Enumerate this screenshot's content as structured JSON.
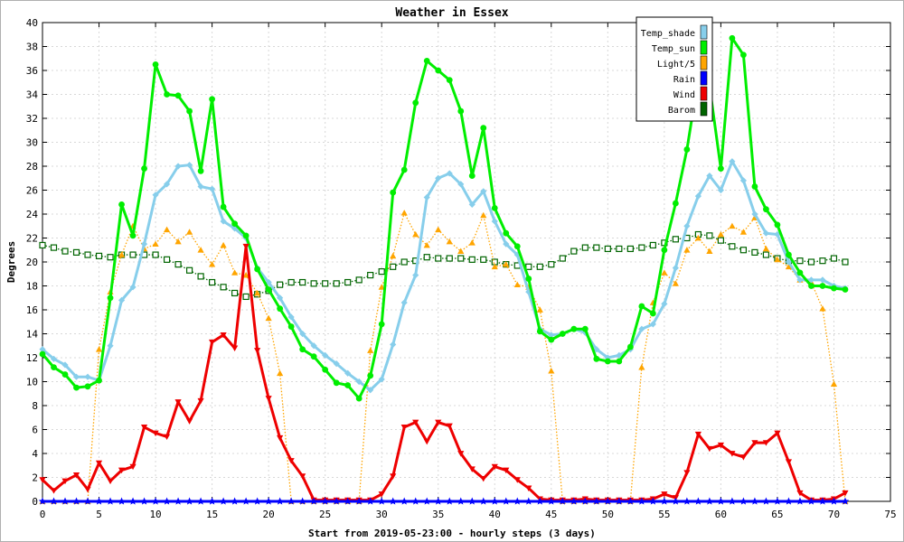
{
  "chart_data": {
    "type": "line",
    "title": "Weather in Essex",
    "xlabel": "Start from 2019-05-23:00 - hourly steps (3 days)",
    "ylabel": "Degrees",
    "xlim": [
      0,
      75
    ],
    "ylim": [
      0,
      40
    ],
    "x_ticks": [
      0,
      5,
      10,
      15,
      20,
      25,
      30,
      35,
      40,
      45,
      50,
      55,
      60,
      65,
      70,
      75
    ],
    "y_ticks": [
      0,
      2,
      4,
      6,
      8,
      10,
      12,
      14,
      16,
      18,
      20,
      22,
      24,
      26,
      28,
      30,
      32,
      34,
      36,
      38,
      40
    ],
    "grid": true,
    "legend_position": "top-right",
    "series": [
      {
        "name": "Temp_shade",
        "color": "#87ceeb",
        "marker": "diamond",
        "line": "solid",
        "values": [
          12.7,
          11.9,
          11.4,
          10.4,
          10.4,
          10.1,
          13.0,
          16.8,
          17.9,
          21.5,
          25.6,
          26.5,
          28.0,
          28.1,
          26.3,
          26.1,
          23.4,
          22.8,
          22.0,
          19.5,
          18.3,
          17.0,
          15.4,
          14.0,
          13.0,
          12.2,
          11.5,
          10.7,
          10.0,
          9.3,
          10.2,
          13.1,
          16.6,
          18.9,
          25.4,
          27.0,
          27.4,
          26.5,
          24.8,
          25.9,
          23.4,
          21.5,
          20.6,
          17.5,
          14.4,
          13.9,
          14.0,
          14.4,
          14.1,
          12.7,
          12.0,
          12.2,
          12.7,
          14.4,
          14.8,
          16.5,
          19.5,
          23.0,
          25.5,
          27.2,
          26.0,
          28.4,
          26.8,
          24.0,
          22.4,
          22.3,
          20.0,
          18.5,
          18.5,
          18.5,
          18.0,
          17.8
        ]
      },
      {
        "name": "Temp_sun",
        "color": "#00ee00",
        "marker": "circle",
        "line": "solid",
        "values": [
          12.3,
          11.2,
          10.6,
          9.5,
          9.6,
          10.1,
          17.0,
          24.8,
          22.2,
          27.8,
          36.5,
          34.0,
          33.9,
          32.6,
          27.6,
          33.6,
          24.6,
          23.2,
          22.2,
          19.4,
          17.7,
          16.1,
          14.6,
          12.7,
          12.1,
          11.0,
          9.9,
          9.7,
          8.6,
          10.5,
          14.8,
          25.8,
          27.7,
          33.3,
          36.8,
          36.0,
          35.2,
          32.6,
          27.2,
          31.2,
          24.5,
          22.4,
          21.3,
          18.6,
          14.2,
          13.5,
          14.0,
          14.4,
          14.4,
          11.9,
          11.7,
          11.7,
          12.9,
          16.3,
          15.7,
          21.0,
          24.9,
          29.4,
          35.3,
          34.7,
          27.8,
          38.7,
          37.3,
          26.3,
          24.4,
          23.1,
          20.6,
          19.1,
          18.0,
          18.0,
          17.8,
          17.7
        ]
      },
      {
        "name": "Light/5",
        "color": "#ffa500",
        "marker": "triangle",
        "line": "dotted",
        "values": [
          0,
          0,
          0,
          0,
          0,
          12.7,
          17.5,
          20.6,
          23.0,
          21.1,
          21.5,
          22.7,
          21.7,
          22.5,
          21.0,
          19.8,
          21.4,
          19.1,
          18.9,
          17.4,
          15.3,
          10.7,
          0,
          0,
          0,
          0,
          0,
          0,
          0,
          12.6,
          17.9,
          20.5,
          24.1,
          22.3,
          21.4,
          22.7,
          21.7,
          20.9,
          21.6,
          23.9,
          19.6,
          19.8,
          18.1,
          17.9,
          16.0,
          10.9,
          0,
          0,
          0,
          0,
          0,
          0,
          0,
          11.2,
          16.6,
          19.1,
          18.2,
          21.0,
          22.0,
          20.9,
          22.3,
          23.0,
          22.5,
          23.7,
          21.1,
          20.2,
          19.6,
          18.5,
          18.3,
          16.1,
          9.8,
          0
        ]
      },
      {
        "name": "Rain",
        "color": "#0000ff",
        "marker": "star",
        "line": "solid",
        "values": [
          0,
          0,
          0,
          0,
          0,
          0,
          0,
          0,
          0,
          0,
          0,
          0,
          0,
          0,
          0,
          0,
          0,
          0,
          0,
          0,
          0,
          0,
          0,
          0,
          0,
          0,
          0,
          0,
          0,
          0,
          0,
          0,
          0,
          0,
          0,
          0,
          0,
          0,
          0,
          0,
          0,
          0,
          0,
          0,
          0,
          0,
          0,
          0,
          0,
          0,
          0,
          0,
          0,
          0,
          0,
          0,
          0,
          0,
          0,
          0,
          0,
          0,
          0,
          0,
          0,
          0,
          0,
          0,
          0,
          0,
          0,
          0
        ]
      },
      {
        "name": "Wind",
        "color": "#ee0000",
        "marker": "triangle-down",
        "line": "solid",
        "values": [
          1.8,
          0.9,
          1.7,
          2.2,
          1.0,
          3.2,
          1.7,
          2.6,
          2.9,
          6.2,
          5.7,
          5.4,
          8.3,
          6.7,
          8.4,
          13.3,
          13.9,
          12.8,
          21.3,
          12.6,
          8.6,
          5.3,
          3.4,
          2.1,
          0.1,
          0.1,
          0.1,
          0.1,
          0.1,
          0.1,
          0.6,
          2.1,
          6.2,
          6.6,
          5.0,
          6.6,
          6.3,
          4.0,
          2.7,
          1.9,
          2.9,
          2.6,
          1.8,
          1.1,
          0.2,
          0.1,
          0.1,
          0.1,
          0.2,
          0.1,
          0.1,
          0.1,
          0.1,
          0.1,
          0.2,
          0.6,
          0.3,
          2.4,
          5.6,
          4.4,
          4.7,
          4.0,
          3.7,
          4.9,
          4.9,
          5.7,
          3.3,
          0.7,
          0.1,
          0.1,
          0.2,
          0.7
        ]
      },
      {
        "name": "Barom",
        "color": "#006400",
        "marker": "square",
        "line": "dotted",
        "values": [
          21.4,
          21.2,
          20.9,
          20.8,
          20.6,
          20.5,
          20.4,
          20.6,
          20.6,
          20.6,
          20.6,
          20.2,
          19.8,
          19.3,
          18.8,
          18.3,
          17.9,
          17.4,
          17.1,
          17.3,
          17.6,
          18.1,
          18.3,
          18.3,
          18.2,
          18.2,
          18.2,
          18.3,
          18.5,
          18.9,
          19.2,
          19.6,
          20.0,
          20.1,
          20.4,
          20.3,
          20.3,
          20.3,
          20.2,
          20.2,
          20.0,
          19.8,
          19.7,
          19.6,
          19.6,
          19.8,
          20.3,
          20.9,
          21.2,
          21.2,
          21.1,
          21.1,
          21.1,
          21.2,
          21.4,
          21.6,
          21.9,
          22.0,
          22.3,
          22.2,
          21.8,
          21.3,
          21.0,
          20.8,
          20.6,
          20.3,
          20.1,
          20.1,
          20.0,
          20.1,
          20.3,
          20.0
        ]
      }
    ]
  }
}
